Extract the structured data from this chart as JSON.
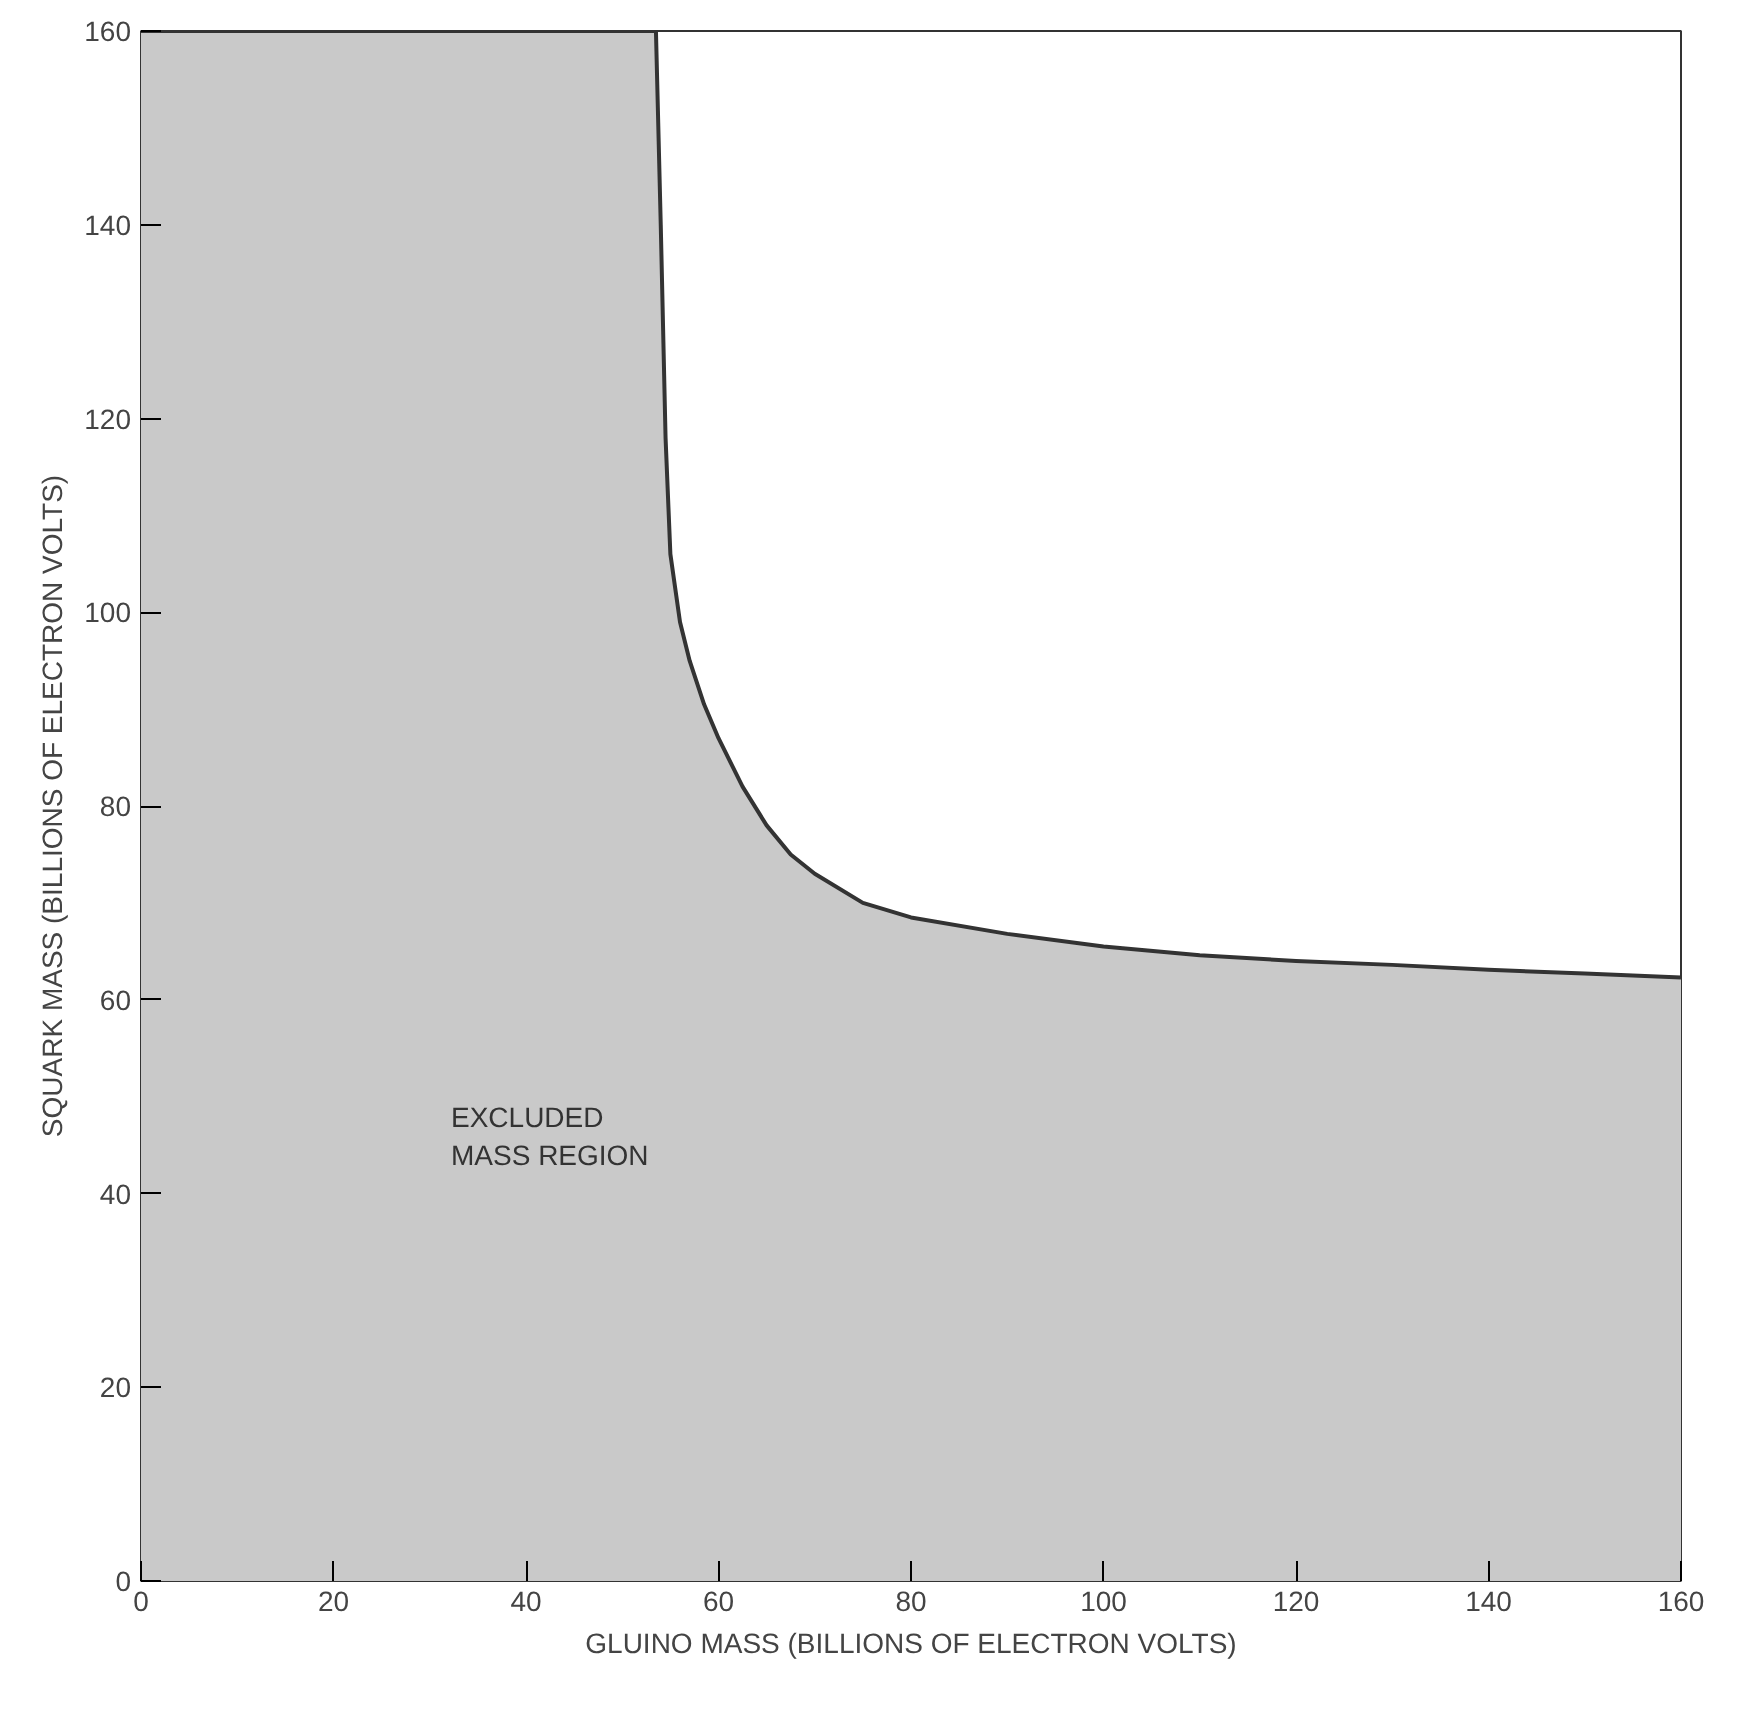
{
  "chart_data": {
    "type": "area",
    "xlabel": "GLUINO MASS (BILLIONS OF ELECTRON VOLTS)",
    "ylabel": "SQUARK MASS (BILLIONS OF ELECTRON VOLTS)",
    "x": [
      0,
      53.5,
      54,
      54.5,
      55,
      56,
      57,
      58.5,
      60,
      62.5,
      65,
      67.5,
      70,
      75,
      80,
      90,
      100,
      110,
      120,
      130,
      140,
      150,
      160
    ],
    "series": [
      {
        "color": "#c9c9c9",
        "values": [
          160,
          160,
          140,
          118,
          106,
          99,
          95,
          90.5,
          87,
          82,
          78,
          75,
          73,
          70,
          68.5,
          66.8,
          65.5,
          64.6,
          64,
          63.6,
          63.1,
          62.7,
          62.3
        ]
      }
    ],
    "xlim": [
      0,
      160
    ],
    "ylim": [
      0,
      160
    ],
    "xticks": [
      0,
      20,
      40,
      60,
      80,
      100,
      120,
      140,
      160
    ],
    "yticks": [
      0,
      20,
      40,
      60,
      80,
      100,
      120,
      140,
      160
    ],
    "annotations": [
      "EXCLUDED\nMASS REGION"
    ],
    "grid": false
  }
}
